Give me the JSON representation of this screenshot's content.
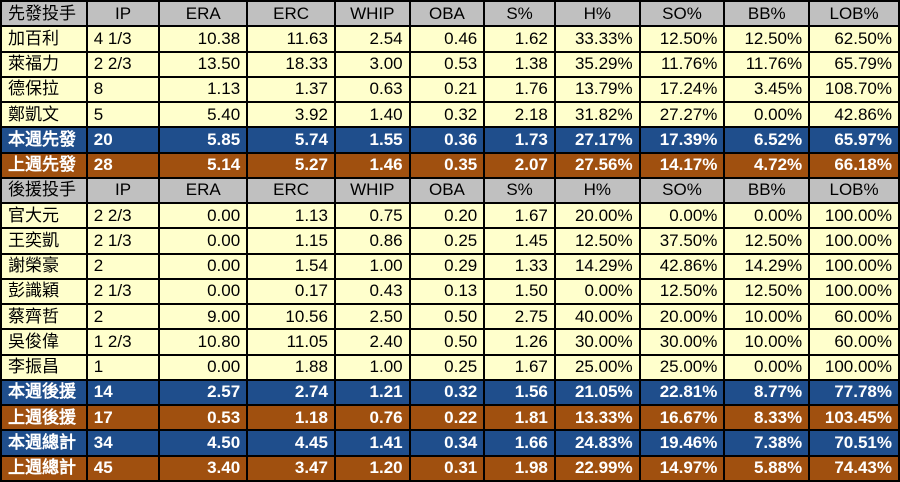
{
  "columns": [
    "IP",
    "ERA",
    "ERC",
    "WHIP",
    "OBA",
    "S%",
    "H%",
    "SO%",
    "BB%",
    "LOB%"
  ],
  "colors": {
    "header": "#c0c0c0",
    "data_row": "#ffffcc",
    "this_week": "#1f4e8c",
    "last_week": "#a0500f"
  },
  "starters": {
    "header": "先發投手",
    "rows": [
      [
        "加百利",
        "4 1/3",
        "10.38",
        "11.63",
        "2.54",
        "0.46",
        "1.62",
        "33.33%",
        "12.50%",
        "12.50%",
        "62.50%"
      ],
      [
        "萊福力",
        "2 2/3",
        "13.50",
        "18.33",
        "3.00",
        "0.53",
        "1.38",
        "35.29%",
        "11.76%",
        "11.76%",
        "65.79%"
      ],
      [
        "德保拉",
        "8",
        "1.13",
        "1.37",
        "0.63",
        "0.21",
        "1.76",
        "13.79%",
        "17.24%",
        "3.45%",
        "108.70%"
      ],
      [
        "鄭凱文",
        "5",
        "5.40",
        "3.92",
        "1.40",
        "0.32",
        "2.18",
        "31.82%",
        "27.27%",
        "0.00%",
        "42.86%"
      ]
    ],
    "this_week": [
      "本週先發",
      "20",
      "5.85",
      "5.74",
      "1.55",
      "0.36",
      "1.73",
      "27.17%",
      "17.39%",
      "6.52%",
      "65.97%"
    ],
    "last_week": [
      "上週先發",
      "28",
      "5.14",
      "5.27",
      "1.46",
      "0.35",
      "2.07",
      "27.56%",
      "14.17%",
      "4.72%",
      "66.18%"
    ]
  },
  "relievers": {
    "header": "後援投手",
    "rows": [
      [
        "官大元",
        "2 2/3",
        "0.00",
        "1.13",
        "0.75",
        "0.20",
        "1.67",
        "20.00%",
        "0.00%",
        "0.00%",
        "100.00%"
      ],
      [
        "王奕凱",
        "2 1/3",
        "0.00",
        "1.15",
        "0.86",
        "0.25",
        "1.45",
        "12.50%",
        "37.50%",
        "12.50%",
        "100.00%"
      ],
      [
        "謝榮豪",
        "2",
        "0.00",
        "1.54",
        "1.00",
        "0.29",
        "1.33",
        "14.29%",
        "42.86%",
        "14.29%",
        "100.00%"
      ],
      [
        "彭識穎",
        "2 1/3",
        "0.00",
        "0.17",
        "0.43",
        "0.13",
        "1.50",
        "0.00%",
        "12.50%",
        "12.50%",
        "100.00%"
      ],
      [
        "蔡齊哲",
        "2",
        "9.00",
        "10.56",
        "2.50",
        "0.50",
        "2.75",
        "40.00%",
        "20.00%",
        "10.00%",
        "60.00%"
      ],
      [
        "吳俊偉",
        "1 2/3",
        "10.80",
        "11.05",
        "2.40",
        "0.50",
        "1.26",
        "30.00%",
        "30.00%",
        "10.00%",
        "60.00%"
      ],
      [
        "李振昌",
        "1",
        "0.00",
        "1.88",
        "1.00",
        "0.25",
        "1.67",
        "25.00%",
        "25.00%",
        "0.00%",
        "100.00%"
      ]
    ],
    "this_week": [
      "本週後援",
      "14",
      "2.57",
      "2.74",
      "1.21",
      "0.32",
      "1.56",
      "21.05%",
      "22.81%",
      "8.77%",
      "77.78%"
    ],
    "last_week": [
      "上週後援",
      "17",
      "0.53",
      "1.18",
      "0.76",
      "0.22",
      "1.81",
      "13.33%",
      "16.67%",
      "8.33%",
      "103.45%"
    ]
  },
  "totals": {
    "this_week": [
      "本週總計",
      "34",
      "4.50",
      "4.45",
      "1.41",
      "0.34",
      "1.66",
      "24.83%",
      "19.46%",
      "7.38%",
      "70.51%"
    ],
    "last_week": [
      "上週總計",
      "45",
      "3.40",
      "3.47",
      "1.20",
      "0.31",
      "1.98",
      "22.99%",
      "14.97%",
      "5.88%",
      "74.43%"
    ]
  }
}
